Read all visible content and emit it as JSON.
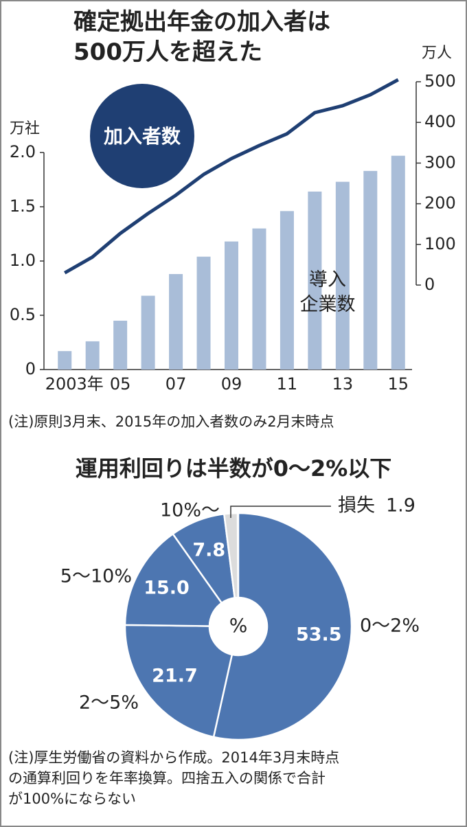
{
  "chart_data": [
    {
      "type": "combo",
      "title": "確定拠出年金の加入者は\n500万人を超えた",
      "categories": [
        "2003年",
        null,
        "05",
        null,
        "07",
        null,
        "09",
        null,
        "11",
        null,
        "13",
        null,
        "15"
      ],
      "series": [
        {
          "name": "導入\n企業数",
          "type": "bar",
          "color": "#a9bdd8",
          "values": [
            0.17,
            0.26,
            0.45,
            0.68,
            0.88,
            1.04,
            1.18,
            1.3,
            1.46,
            1.64,
            1.73,
            1.83,
            1.97
          ]
        },
        {
          "name": "加入者数",
          "type": "line",
          "axis": "y2",
          "color": "#1f3f73",
          "values": [
            30,
            69,
            127,
            176,
            221,
            272,
            311,
            343,
            372,
            424,
            441,
            468,
            505
          ]
        }
      ],
      "ylabel": "万社",
      "y2label": "万人",
      "ylim": [
        0,
        2.0
      ],
      "yticks": [
        0,
        0.5,
        {
          "value": 1.0,
          "label": "1.0"
        },
        1.5,
        {
          "value": 2.0,
          "label": "2.0"
        }
      ],
      "y2lim": [
        0,
        500
      ],
      "y2ticks": [
        0,
        100,
        200,
        300,
        400,
        500
      ],
      "note": "(注)原則3月末、2015年の加入者数のみ2月末時点"
    },
    {
      "type": "donut",
      "title": "運用利回りは半数が0～2%以下",
      "categories": [
        "0～2%",
        "2～5%",
        "5～10%",
        "10%～",
        "損失"
      ],
      "values": [
        53.5,
        21.7,
        15.0,
        7.8,
        1.9
      ],
      "value_labels": [
        "53.5",
        "21.7",
        "15.0",
        "7.8",
        "1.9"
      ],
      "colors": [
        "#4d76b1",
        "#4d76b1",
        "#4d76b1",
        "#4d76b1",
        "#dcdcdc"
      ],
      "center_label": "%",
      "note": "(注)厚生労働省の資料から作成。2014年3月末時点\nの通算利回りを年率換算。四捨五入の関係で合計\nが100%にならない"
    }
  ]
}
